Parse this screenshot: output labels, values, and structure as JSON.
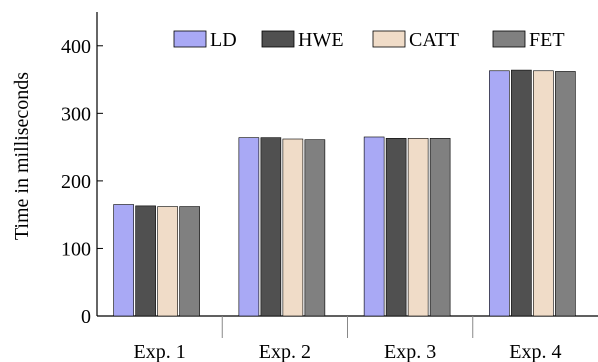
{
  "chart_data": {
    "type": "bar",
    "title": "",
    "xlabel": "",
    "ylabel": "Time in milliseconds",
    "ylim": [
      0,
      450
    ],
    "yticks": [
      0,
      100,
      200,
      300,
      400
    ],
    "categories": [
      "Exp. 1",
      "Exp. 2",
      "Exp. 3",
      "Exp. 4"
    ],
    "series": [
      {
        "name": "LD",
        "color": "#a9a9f5",
        "values": [
          165,
          264,
          265,
          363
        ]
      },
      {
        "name": "HWE",
        "color": "#505050",
        "values": [
          163,
          264,
          263,
          364
        ]
      },
      {
        "name": "CATT",
        "color": "#f0dcc8",
        "values": [
          162,
          262,
          263,
          363
        ]
      },
      {
        "name": "FET",
        "color": "#808080",
        "values": [
          162,
          261,
          263,
          362
        ]
      }
    ],
    "legend_position": "top-right",
    "grid": false
  }
}
